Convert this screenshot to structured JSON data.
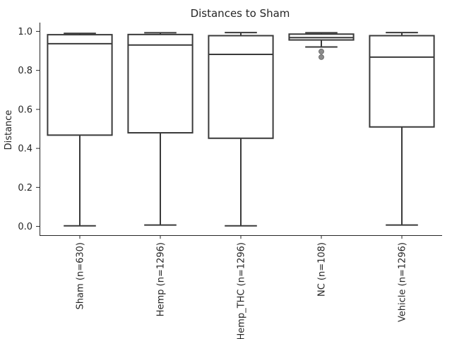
{
  "chart_data": {
    "type": "box",
    "title": "Distances to Sham",
    "xlabel": "",
    "ylabel": "Distance",
    "ylim": [
      -0.045,
      1.045
    ],
    "yticks": [
      "0.0",
      "0.2",
      "0.4",
      "0.6",
      "0.8",
      "1.0"
    ],
    "ytick_values": [
      0.0,
      0.2,
      0.4,
      0.6,
      0.8,
      1.0
    ],
    "categories": [
      "Sham (n=630)",
      "Hemp (n=1296)",
      "Hemp_THC (n=1296)",
      "NC (n=108)",
      "Vehicle (n=1296)"
    ],
    "boxes": [
      {
        "whislo": 0.003,
        "q1": 0.468,
        "med": 0.937,
        "q3": 0.983,
        "whishi": 0.99,
        "fliers": []
      },
      {
        "whislo": 0.007,
        "q1": 0.48,
        "med": 0.93,
        "q3": 0.984,
        "whishi": 0.993,
        "fliers": []
      },
      {
        "whislo": 0.003,
        "q1": 0.452,
        "med": 0.882,
        "q3": 0.978,
        "whishi": 0.994,
        "fliers": []
      },
      {
        "whislo": 0.92,
        "q1": 0.956,
        "med": 0.968,
        "q3": 0.986,
        "whishi": 0.993,
        "fliers": [
          0.897,
          0.868
        ]
      },
      {
        "whislo": 0.007,
        "q1": 0.51,
        "med": 0.868,
        "q3": 0.978,
        "whishi": 0.994,
        "fliers": []
      }
    ],
    "grid": false,
    "colors": {
      "box_edge": "#3a3a3a",
      "box_fill": "#ffffff",
      "flier": "#8c8c8c",
      "axis": "#262626",
      "text": "#262626"
    }
  }
}
